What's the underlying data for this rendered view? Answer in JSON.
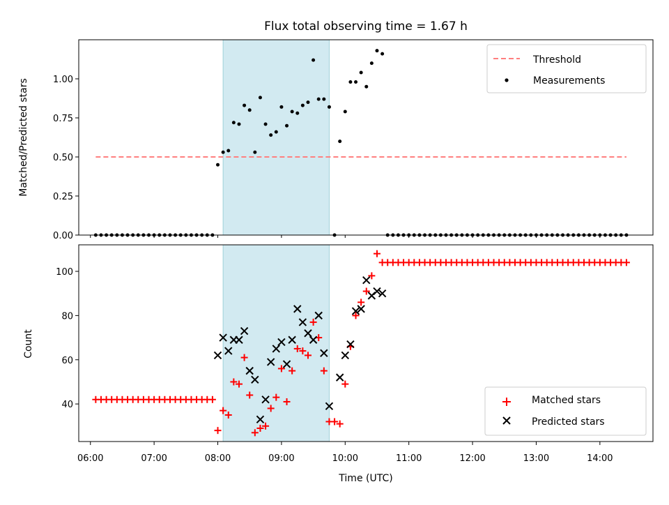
{
  "figure": {
    "title": "Flux total observing time = 1.67 h"
  },
  "chart_data": [
    {
      "type": "scatter",
      "panel": "top",
      "ylabel": "Matched/Predicted stars",
      "xlabel": "",
      "xlim": [
        "05:49",
        "14:50"
      ],
      "ylim": [
        0,
        1.25
      ],
      "yticks": [
        0.0,
        0.25,
        0.5,
        0.75,
        1.0
      ],
      "ytick_labels": [
        "0.00",
        "0.25",
        "0.50",
        "0.75",
        "1.00"
      ],
      "shaded_span": {
        "start": "08:05",
        "end": "09:45",
        "color": "#add8e6"
      },
      "threshold": {
        "name": "Threshold",
        "y": 0.5,
        "x_range": [
          "06:05",
          "14:25"
        ],
        "color": "#ff7f7f",
        "style": "dashed"
      },
      "legend": {
        "position": "upper right",
        "entries": [
          "Threshold",
          "Measurements"
        ]
      },
      "series": [
        {
          "name": "Measurements",
          "color": "#000000",
          "marker": "dot",
          "points": [
            [
              "06:05",
              0
            ],
            [
              "06:10",
              0
            ],
            [
              "06:15",
              0
            ],
            [
              "06:20",
              0
            ],
            [
              "06:25",
              0
            ],
            [
              "06:30",
              0
            ],
            [
              "06:35",
              0
            ],
            [
              "06:40",
              0
            ],
            [
              "06:45",
              0
            ],
            [
              "06:50",
              0
            ],
            [
              "06:55",
              0
            ],
            [
              "07:00",
              0
            ],
            [
              "07:05",
              0
            ],
            [
              "07:10",
              0
            ],
            [
              "07:15",
              0
            ],
            [
              "07:20",
              0
            ],
            [
              "07:25",
              0
            ],
            [
              "07:30",
              0
            ],
            [
              "07:35",
              0
            ],
            [
              "07:40",
              0
            ],
            [
              "07:45",
              0
            ],
            [
              "07:50",
              0
            ],
            [
              "07:55",
              0
            ],
            [
              "08:00",
              0.45
            ],
            [
              "08:05",
              0.53
            ],
            [
              "08:10",
              0.54
            ],
            [
              "08:15",
              0.72
            ],
            [
              "08:20",
              0.71
            ],
            [
              "08:25",
              0.83
            ],
            [
              "08:30",
              0.8
            ],
            [
              "08:35",
              0.53
            ],
            [
              "08:40",
              0.88
            ],
            [
              "08:45",
              0.71
            ],
            [
              "08:50",
              0.64
            ],
            [
              "08:55",
              0.66
            ],
            [
              "09:00",
              0.82
            ],
            [
              "09:05",
              0.7
            ],
            [
              "09:10",
              0.79
            ],
            [
              "09:15",
              0.78
            ],
            [
              "09:20",
              0.83
            ],
            [
              "09:25",
              0.85
            ],
            [
              "09:30",
              1.12
            ],
            [
              "09:35",
              0.87
            ],
            [
              "09:40",
              0.87
            ],
            [
              "09:45",
              0.82
            ],
            [
              "09:50",
              0.0
            ],
            [
              "09:55",
              0.6
            ],
            [
              "10:00",
              0.79
            ],
            [
              "10:05",
              0.98
            ],
            [
              "10:10",
              0.98
            ],
            [
              "10:15",
              1.04
            ],
            [
              "10:20",
              0.95
            ],
            [
              "10:25",
              1.1
            ],
            [
              "10:30",
              1.18
            ],
            [
              "10:35",
              1.16
            ],
            [
              "10:40",
              0
            ],
            [
              "10:45",
              0
            ],
            [
              "10:50",
              0
            ],
            [
              "10:55",
              0
            ],
            [
              "11:00",
              0
            ],
            [
              "11:05",
              0
            ],
            [
              "11:10",
              0
            ],
            [
              "11:15",
              0
            ],
            [
              "11:20",
              0
            ],
            [
              "11:25",
              0
            ],
            [
              "11:30",
              0
            ],
            [
              "11:35",
              0
            ],
            [
              "11:40",
              0
            ],
            [
              "11:45",
              0
            ],
            [
              "11:50",
              0
            ],
            [
              "11:55",
              0
            ],
            [
              "12:00",
              0
            ],
            [
              "12:05",
              0
            ],
            [
              "12:10",
              0
            ],
            [
              "12:15",
              0
            ],
            [
              "12:20",
              0
            ],
            [
              "12:25",
              0
            ],
            [
              "12:30",
              0
            ],
            [
              "12:35",
              0
            ],
            [
              "12:40",
              0
            ],
            [
              "12:45",
              0
            ],
            [
              "12:50",
              0
            ],
            [
              "12:55",
              0
            ],
            [
              "13:00",
              0
            ],
            [
              "13:05",
              0
            ],
            [
              "13:10",
              0
            ],
            [
              "13:15",
              0
            ],
            [
              "13:20",
              0
            ],
            [
              "13:25",
              0
            ],
            [
              "13:30",
              0
            ],
            [
              "13:35",
              0
            ],
            [
              "13:40",
              0
            ],
            [
              "13:45",
              0
            ],
            [
              "13:50",
              0
            ],
            [
              "13:55",
              0
            ],
            [
              "14:00",
              0
            ],
            [
              "14:05",
              0
            ],
            [
              "14:10",
              0
            ],
            [
              "14:15",
              0
            ],
            [
              "14:20",
              0
            ],
            [
              "14:25",
              0
            ]
          ]
        }
      ]
    },
    {
      "type": "scatter",
      "panel": "bottom",
      "xlabel": "Time (UTC)",
      "ylabel": "Count",
      "xlim": [
        "05:49",
        "14:50"
      ],
      "ylim": [
        23,
        112
      ],
      "xticks": [
        "06:00",
        "07:00",
        "08:00",
        "09:00",
        "10:00",
        "11:00",
        "12:00",
        "13:00",
        "14:00"
      ],
      "yticks": [
        40,
        60,
        80,
        100
      ],
      "ytick_labels": [
        "40",
        "60",
        "80",
        "100"
      ],
      "shaded_span": {
        "start": "08:05",
        "end": "09:45",
        "color": "#add8e6"
      },
      "legend": {
        "position": "lower right",
        "entries": [
          "Matched stars",
          "Predicted stars"
        ]
      },
      "series": [
        {
          "name": "Matched stars",
          "color": "#ff0000",
          "marker": "plus",
          "points": [
            [
              "06:05",
              42
            ],
            [
              "06:10",
              42
            ],
            [
              "06:15",
              42
            ],
            [
              "06:20",
              42
            ],
            [
              "06:25",
              42
            ],
            [
              "06:30",
              42
            ],
            [
              "06:35",
              42
            ],
            [
              "06:40",
              42
            ],
            [
              "06:45",
              42
            ],
            [
              "06:50",
              42
            ],
            [
              "06:55",
              42
            ],
            [
              "07:00",
              42
            ],
            [
              "07:05",
              42
            ],
            [
              "07:10",
              42
            ],
            [
              "07:15",
              42
            ],
            [
              "07:20",
              42
            ],
            [
              "07:25",
              42
            ],
            [
              "07:30",
              42
            ],
            [
              "07:35",
              42
            ],
            [
              "07:40",
              42
            ],
            [
              "07:45",
              42
            ],
            [
              "07:50",
              42
            ],
            [
              "07:55",
              42
            ],
            [
              "08:00",
              28
            ],
            [
              "08:05",
              37
            ],
            [
              "08:10",
              35
            ],
            [
              "08:15",
              50
            ],
            [
              "08:20",
              49
            ],
            [
              "08:25",
              61
            ],
            [
              "08:30",
              44
            ],
            [
              "08:35",
              27
            ],
            [
              "08:40",
              29
            ],
            [
              "08:45",
              30
            ],
            [
              "08:50",
              38
            ],
            [
              "08:55",
              43
            ],
            [
              "09:00",
              56
            ],
            [
              "09:05",
              41
            ],
            [
              "09:10",
              55
            ],
            [
              "09:15",
              65
            ],
            [
              "09:20",
              64
            ],
            [
              "09:25",
              62
            ],
            [
              "09:30",
              77
            ],
            [
              "09:35",
              70
            ],
            [
              "09:40",
              55
            ],
            [
              "09:45",
              32
            ],
            [
              "09:50",
              32
            ],
            [
              "09:55",
              31
            ],
            [
              "10:00",
              49
            ],
            [
              "10:05",
              66
            ],
            [
              "10:10",
              80
            ],
            [
              "10:15",
              86
            ],
            [
              "10:20",
              91
            ],
            [
              "10:25",
              98
            ],
            [
              "10:30",
              108
            ],
            [
              "10:35",
              104
            ],
            [
              "10:40",
              104
            ],
            [
              "10:45",
              104
            ],
            [
              "10:50",
              104
            ],
            [
              "10:55",
              104
            ],
            [
              "11:00",
              104
            ],
            [
              "11:05",
              104
            ],
            [
              "11:10",
              104
            ],
            [
              "11:15",
              104
            ],
            [
              "11:20",
              104
            ],
            [
              "11:25",
              104
            ],
            [
              "11:30",
              104
            ],
            [
              "11:35",
              104
            ],
            [
              "11:40",
              104
            ],
            [
              "11:45",
              104
            ],
            [
              "11:50",
              104
            ],
            [
              "11:55",
              104
            ],
            [
              "12:00",
              104
            ],
            [
              "12:05",
              104
            ],
            [
              "12:10",
              104
            ],
            [
              "12:15",
              104
            ],
            [
              "12:20",
              104
            ],
            [
              "12:25",
              104
            ],
            [
              "12:30",
              104
            ],
            [
              "12:35",
              104
            ],
            [
              "12:40",
              104
            ],
            [
              "12:45",
              104
            ],
            [
              "12:50",
              104
            ],
            [
              "12:55",
              104
            ],
            [
              "13:00",
              104
            ],
            [
              "13:05",
              104
            ],
            [
              "13:10",
              104
            ],
            [
              "13:15",
              104
            ],
            [
              "13:20",
              104
            ],
            [
              "13:25",
              104
            ],
            [
              "13:30",
              104
            ],
            [
              "13:35",
              104
            ],
            [
              "13:40",
              104
            ],
            [
              "13:45",
              104
            ],
            [
              "13:50",
              104
            ],
            [
              "13:55",
              104
            ],
            [
              "14:00",
              104
            ],
            [
              "14:05",
              104
            ],
            [
              "14:10",
              104
            ],
            [
              "14:15",
              104
            ],
            [
              "14:20",
              104
            ],
            [
              "14:25",
              104
            ]
          ]
        },
        {
          "name": "Predicted stars",
          "color": "#000000",
          "marker": "x",
          "points": [
            [
              "08:00",
              62
            ],
            [
              "08:05",
              70
            ],
            [
              "08:10",
              64
            ],
            [
              "08:15",
              69
            ],
            [
              "08:20",
              69
            ],
            [
              "08:25",
              73
            ],
            [
              "08:30",
              55
            ],
            [
              "08:35",
              51
            ],
            [
              "08:40",
              33
            ],
            [
              "08:45",
              42
            ],
            [
              "08:50",
              59
            ],
            [
              "08:55",
              65
            ],
            [
              "09:00",
              68
            ],
            [
              "09:05",
              58
            ],
            [
              "09:10",
              69
            ],
            [
              "09:15",
              83
            ],
            [
              "09:20",
              77
            ],
            [
              "09:25",
              72
            ],
            [
              "09:30",
              69
            ],
            [
              "09:35",
              80
            ],
            [
              "09:40",
              63
            ],
            [
              "09:45",
              39
            ],
            [
              "09:55",
              52
            ],
            [
              "10:00",
              62
            ],
            [
              "10:05",
              67
            ],
            [
              "10:10",
              82
            ],
            [
              "10:15",
              83
            ],
            [
              "10:20",
              96
            ],
            [
              "10:25",
              89
            ],
            [
              "10:30",
              91
            ],
            [
              "10:35",
              90
            ]
          ]
        }
      ]
    }
  ]
}
